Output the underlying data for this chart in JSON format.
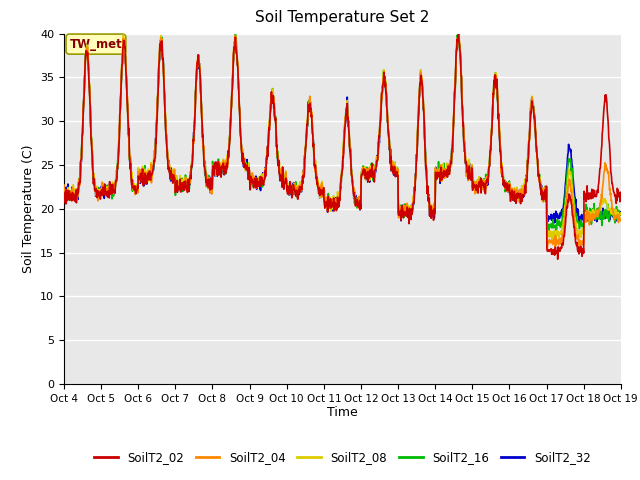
{
  "title": "Soil Temperature Set 2",
  "xlabel": "Time",
  "ylabel": "Soil Temperature (C)",
  "ylim": [
    0,
    40
  ],
  "series_colors": {
    "SoilT2_02": "#cc0000",
    "SoilT2_04": "#ff8800",
    "SoilT2_08": "#ddcc00",
    "SoilT2_16": "#00bb00",
    "SoilT2_32": "#0000cc"
  },
  "annotation_text": "TW_met",
  "annotation_color": "#880000",
  "annotation_bg": "#ffffbb",
  "annotation_edge": "#999900",
  "background_color": "#e8e8e8",
  "tick_labels": [
    "Oct 4",
    "Oct 5",
    "Oct 6",
    "Oct 7",
    "Oct 8",
    "Oct 9",
    "Oct 10",
    "Oct 11",
    "Oct 12",
    "Oct 13",
    "Oct 14",
    "Oct 15",
    "Oct 16",
    "Oct 17",
    "Oct 18",
    "Oct 19"
  ],
  "grid_color": "white",
  "linewidth": 1.2,
  "figsize": [
    6.4,
    4.8
  ],
  "dpi": 100
}
